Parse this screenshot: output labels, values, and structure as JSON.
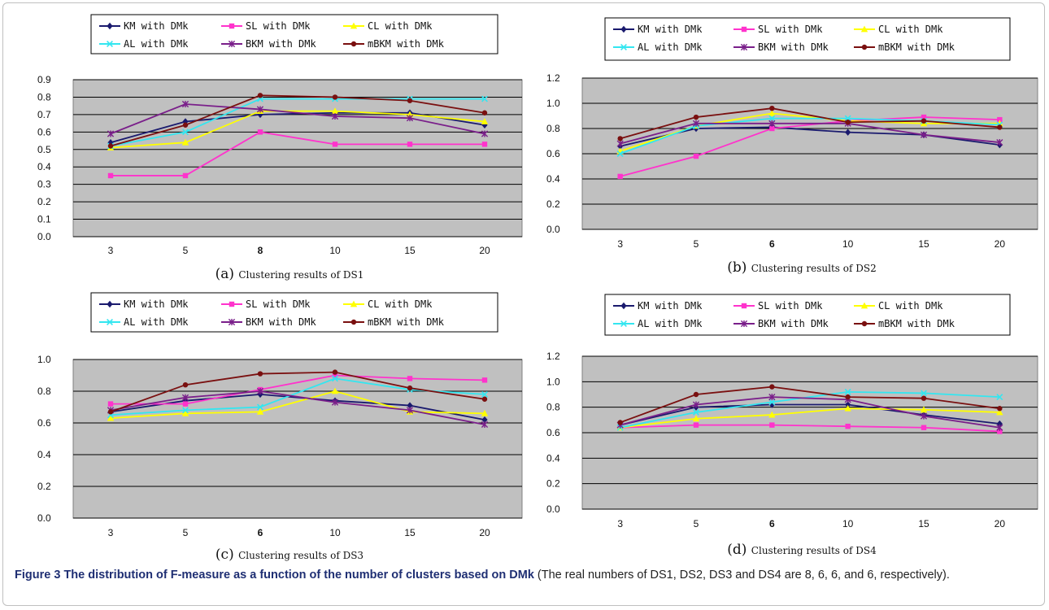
{
  "figure": {
    "label": "Figure 3",
    "title": "The distribution of F-measure as a function of the number of clusters based on DMk",
    "note": " (The real numbers of DS1, DS2, DS3 and DS4 are 8, 6, 6, and 6, respectively)",
    "end": "."
  },
  "colors": {
    "plot_bg": "#c0c0c0",
    "KM": "#1a1a6e",
    "SL": "#ff33cc",
    "CL": "#ffff00",
    "AL": "#33e6f0",
    "BKM": "#7a1f8a",
    "mBKM": "#7a1010"
  },
  "chart_data": [
    {
      "type": "line",
      "panel_letter": "(a)",
      "caption": "Clustering results of DS1",
      "categories": [
        "3",
        "5",
        "8",
        "10",
        "15",
        "20"
      ],
      "bold_category": "8",
      "yticks": [
        "0.0",
        "0.1",
        "0.2",
        "0.3",
        "0.4",
        "0.5",
        "0.6",
        "0.7",
        "0.8",
        "0.9"
      ],
      "ylim": [
        0,
        0.9
      ],
      "grid": true,
      "legend_position": "top",
      "series": [
        {
          "name": "KM with DMk",
          "key": "KM",
          "marker": "diamond",
          "values": [
            0.54,
            0.66,
            0.7,
            0.71,
            0.71,
            0.64
          ]
        },
        {
          "name": "SL with DMk",
          "key": "SL",
          "marker": "square",
          "values": [
            0.35,
            0.35,
            0.6,
            0.53,
            0.53,
            0.53
          ]
        },
        {
          "name": "CL with DMk",
          "key": "CL",
          "marker": "triangle",
          "values": [
            0.51,
            0.54,
            0.72,
            0.72,
            0.7,
            0.66
          ]
        },
        {
          "name": "AL with DMk",
          "key": "AL",
          "marker": "x",
          "values": [
            0.52,
            0.6,
            0.79,
            0.79,
            0.79,
            0.79
          ]
        },
        {
          "name": "BKM with DMk",
          "key": "BKM",
          "marker": "star",
          "values": [
            0.59,
            0.76,
            0.73,
            0.69,
            0.68,
            0.59
          ]
        },
        {
          "name": "mBKM with DMk",
          "key": "mBKM",
          "marker": "dot",
          "values": [
            0.52,
            0.64,
            0.81,
            0.8,
            0.78,
            0.71
          ]
        }
      ]
    },
    {
      "type": "line",
      "panel_letter": "(b)",
      "caption": "Clustering results of DS2",
      "categories": [
        "3",
        "5",
        "6",
        "10",
        "15",
        "20"
      ],
      "bold_category": "6",
      "yticks": [
        "0.0",
        "0.2",
        "0.4",
        "0.6",
        "0.8",
        "1.0",
        "1.2"
      ],
      "ylim": [
        0,
        1.2
      ],
      "grid": true,
      "legend_position": "top",
      "series": [
        {
          "name": "KM with DMk",
          "key": "KM",
          "marker": "diamond",
          "values": [
            0.66,
            0.8,
            0.81,
            0.77,
            0.75,
            0.67
          ]
        },
        {
          "name": "SL with DMk",
          "key": "SL",
          "marker": "square",
          "values": [
            0.42,
            0.58,
            0.8,
            0.86,
            0.89,
            0.87
          ]
        },
        {
          "name": "CL with DMk",
          "key": "CL",
          "marker": "triangle",
          "values": [
            0.62,
            0.82,
            0.92,
            0.86,
            0.84,
            0.84
          ]
        },
        {
          "name": "AL with DMk",
          "key": "AL",
          "marker": "x",
          "values": [
            0.6,
            0.82,
            0.88,
            0.88,
            0.86,
            0.83
          ]
        },
        {
          "name": "BKM with DMk",
          "key": "BKM",
          "marker": "star",
          "values": [
            0.68,
            0.84,
            0.84,
            0.84,
            0.75,
            0.69
          ]
        },
        {
          "name": "mBKM with DMk",
          "key": "mBKM",
          "marker": "dot",
          "values": [
            0.72,
            0.89,
            0.96,
            0.85,
            0.86,
            0.81
          ]
        }
      ]
    },
    {
      "type": "line",
      "panel_letter": "(c)",
      "caption": "Clustering results of DS3",
      "categories": [
        "3",
        "5",
        "6",
        "10",
        "15",
        "20"
      ],
      "bold_category": "6",
      "yticks": [
        "0.0",
        "0.2",
        "0.4",
        "0.6",
        "0.8",
        "1.0"
      ],
      "ylim": [
        0,
        1.0
      ],
      "grid": true,
      "legend_position": "top",
      "series": [
        {
          "name": "KM with DMk",
          "key": "KM",
          "marker": "diamond",
          "values": [
            0.67,
            0.74,
            0.78,
            0.74,
            0.71,
            0.62
          ]
        },
        {
          "name": "SL with DMk",
          "key": "SL",
          "marker": "square",
          "values": [
            0.72,
            0.72,
            0.81,
            0.9,
            0.88,
            0.87
          ]
        },
        {
          "name": "CL with DMk",
          "key": "CL",
          "marker": "triangle",
          "values": [
            0.63,
            0.66,
            0.67,
            0.8,
            0.67,
            0.66
          ]
        },
        {
          "name": "AL with DMk",
          "key": "AL",
          "marker": "x",
          "values": [
            0.65,
            0.68,
            0.7,
            0.88,
            0.81,
            0.78
          ]
        },
        {
          "name": "BKM with DMk",
          "key": "BKM",
          "marker": "star",
          "values": [
            0.68,
            0.76,
            0.8,
            0.73,
            0.68,
            0.59
          ]
        },
        {
          "name": "mBKM with DMk",
          "key": "mBKM",
          "marker": "dot",
          "values": [
            0.67,
            0.84,
            0.91,
            0.92,
            0.82,
            0.75
          ]
        }
      ]
    },
    {
      "type": "line",
      "panel_letter": "(d)",
      "caption": "Clustering results of DS4",
      "categories": [
        "3",
        "5",
        "6",
        "10",
        "15",
        "20"
      ],
      "bold_category": "6",
      "yticks": [
        "0.0",
        "0.2",
        "0.4",
        "0.6",
        "0.8",
        "1.0",
        "1.2"
      ],
      "ylim": [
        0,
        1.2
      ],
      "grid": true,
      "legend_position": "top",
      "series": [
        {
          "name": "KM with DMk",
          "key": "KM",
          "marker": "diamond",
          "values": [
            0.66,
            0.8,
            0.82,
            0.82,
            0.74,
            0.67
          ]
        },
        {
          "name": "SL with DMk",
          "key": "SL",
          "marker": "square",
          "values": [
            0.64,
            0.66,
            0.66,
            0.65,
            0.64,
            0.61
          ]
        },
        {
          "name": "CL with DMk",
          "key": "CL",
          "marker": "triangle",
          "values": [
            0.64,
            0.71,
            0.74,
            0.79,
            0.78,
            0.76
          ]
        },
        {
          "name": "AL with DMk",
          "key": "AL",
          "marker": "x",
          "values": [
            0.64,
            0.76,
            0.84,
            0.92,
            0.91,
            0.88
          ]
        },
        {
          "name": "BKM with DMk",
          "key": "BKM",
          "marker": "star",
          "values": [
            0.66,
            0.82,
            0.88,
            0.86,
            0.73,
            0.64
          ]
        },
        {
          "name": "mBKM with DMk",
          "key": "mBKM",
          "marker": "dot",
          "values": [
            0.68,
            0.9,
            0.96,
            0.88,
            0.87,
            0.79
          ]
        }
      ]
    }
  ]
}
